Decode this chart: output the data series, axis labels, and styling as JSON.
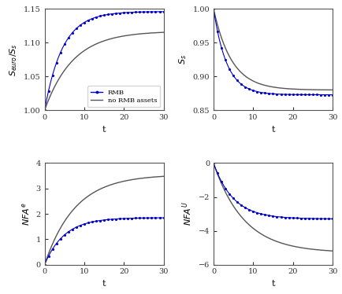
{
  "rmb_color": "#0000cc",
  "nrmb_color": "#555555",
  "panel1_ylabel": "$S_{euro}/S_s$",
  "panel2_ylabel": "$S_s$",
  "panel3_ylabel": "$NFA^e$",
  "panel4_ylabel": "$NFA^U$",
  "xlabel": "t",
  "panel1_ylim": [
    1.0,
    1.15
  ],
  "panel2_ylim": [
    0.85,
    1.0
  ],
  "panel3_ylim": [
    0.0,
    4.0
  ],
  "panel4_ylim": [
    -6.0,
    0.0
  ],
  "panel1_yticks": [
    1.0,
    1.05,
    1.1,
    1.15
  ],
  "panel2_yticks": [
    0.85,
    0.9,
    0.95,
    1.0
  ],
  "panel3_yticks": [
    0,
    1,
    2,
    3,
    4
  ],
  "panel4_yticks": [
    -6,
    -4,
    -2,
    0
  ],
  "xticks": [
    0,
    10,
    20,
    30
  ],
  "legend_labels": [
    "RMB",
    "no RMB assets"
  ],
  "p1_rmb_inf": 1.146,
  "p1_rmb_rate": 0.22,
  "p1_nrmb_inf": 1.117,
  "p1_nrmb_rate": 0.14,
  "p2_rmb_inf": 0.873,
  "p2_rmb_rate": 0.3,
  "p2_nrmb_inf": 0.88,
  "p2_nrmb_rate": 0.22,
  "p3_rmb_inf": 1.85,
  "p3_rmb_rate": 0.2,
  "p3_nrmb_inf": 3.55,
  "p3_nrmb_rate": 0.13,
  "p4_rmb_inf": -3.3,
  "p4_rmb_rate": 0.2,
  "p4_nrmb_inf": -5.3,
  "p4_nrmb_rate": 0.13
}
